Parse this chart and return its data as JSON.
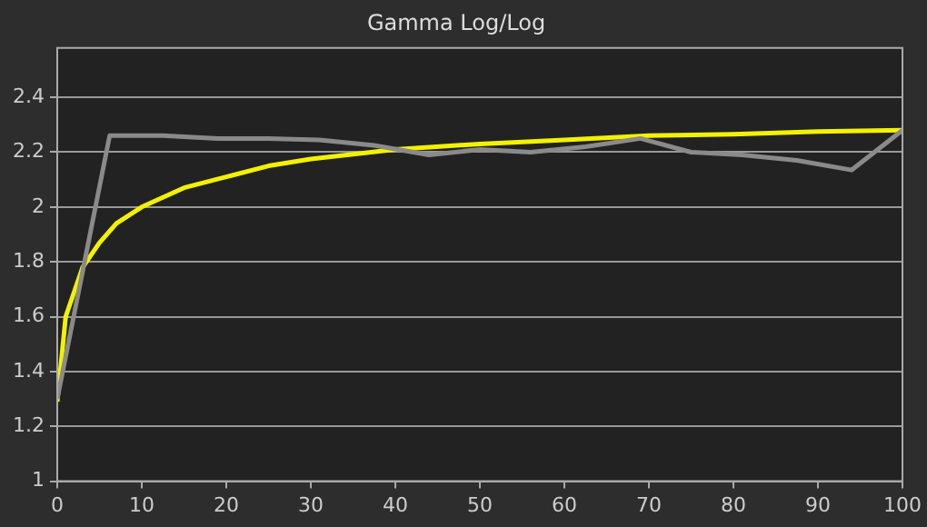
{
  "chart_data": {
    "type": "line",
    "title": "Gamma Log/Log",
    "xlim": [
      0,
      100
    ],
    "xticks": [
      0,
      10,
      20,
      30,
      40,
      50,
      60,
      70,
      80,
      90,
      100
    ],
    "ylim": [
      1,
      2.58
    ],
    "yticks": [
      1,
      1.2,
      1.4,
      1.6,
      1.8,
      2,
      2.2,
      2.4
    ],
    "grid": "y",
    "legend": false,
    "marker": "none",
    "series": [
      {
        "color": "#8a8a8a",
        "x": [
          0,
          6.2,
          12.5,
          19,
          25,
          31,
          37.5,
          44,
          50,
          56,
          62.5,
          69,
          75,
          81,
          87.5,
          94,
          100
        ],
        "values": [
          1.3,
          2.26,
          2.26,
          2.25,
          2.25,
          2.245,
          2.225,
          2.19,
          2.21,
          2.2,
          2.22,
          2.25,
          2.2,
          2.19,
          2.17,
          2.135,
          2.28
        ]
      },
      {
        "color": "#f2f200",
        "x": [
          0,
          1,
          3,
          5,
          7,
          10,
          15,
          20,
          25,
          30,
          40,
          50,
          60,
          70,
          80,
          90,
          100
        ],
        "values": [
          1.29,
          1.6,
          1.78,
          1.87,
          1.94,
          2,
          2.07,
          2.11,
          2.15,
          2.175,
          2.21,
          2.23,
          2.245,
          2.26,
          2.265,
          2.275,
          2.28
        ]
      }
    ]
  }
}
